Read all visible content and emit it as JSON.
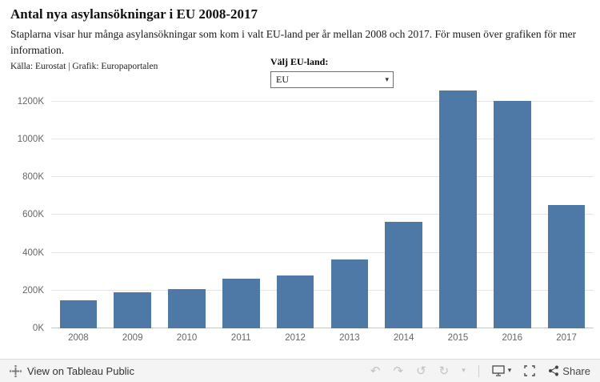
{
  "header": {
    "title": "Antal nya asylansökningar i EU 2008-2017",
    "subtitle": "Staplarna visar hur många asylansökningar som kom i valt EU-land per år mellan 2008 och 2017. För musen över grafiken för mer information.",
    "source": "Källa: Eurostat | Grafik: Europaportalen"
  },
  "filter": {
    "label": "Välj EU-land:",
    "value": "EU",
    "caret": "▾"
  },
  "chart_data": {
    "type": "bar",
    "title": "Antal nya asylansökningar i EU 2008-2017",
    "categories": [
      "2008",
      "2009",
      "2010",
      "2011",
      "2012",
      "2013",
      "2014",
      "2015",
      "2016",
      "2017"
    ],
    "values": [
      150000,
      192000,
      206000,
      264000,
      279000,
      366000,
      562000,
      1256000,
      1204000,
      652000
    ],
    "yticks": [
      {
        "value": 0,
        "label": "0K"
      },
      {
        "value": 200000,
        "label": "200K"
      },
      {
        "value": 400000,
        "label": "400K"
      },
      {
        "value": 600000,
        "label": "600K"
      },
      {
        "value": 800000,
        "label": "800K"
      },
      {
        "value": 1000000,
        "label": "1000K"
      },
      {
        "value": 1200000,
        "label": "1200K"
      }
    ],
    "ylim": [
      0,
      1270000
    ],
    "xlabel": "",
    "ylabel": "",
    "grid": "horizontal",
    "legend": "none",
    "bar_color": "#4e79a7"
  },
  "toolbar": {
    "view_label": "View on Tableau Public",
    "share_label": "Share",
    "glyphs": {
      "undo": "↶",
      "redo": "↷",
      "revert": "↺",
      "refresh": "↻",
      "caret": "▾"
    }
  }
}
